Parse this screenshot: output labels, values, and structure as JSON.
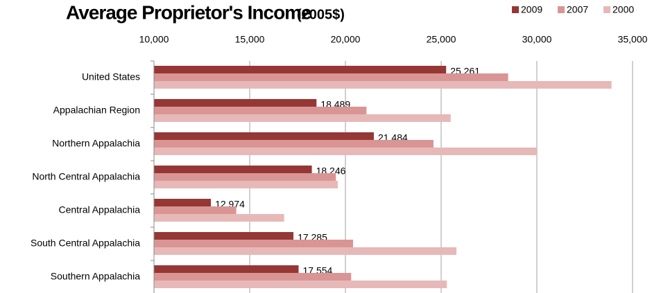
{
  "chart_data": {
    "type": "bar",
    "orientation": "horizontal",
    "title": "Average Proprietor's Income",
    "subtitle": "(2005$)",
    "categories": [
      "United States",
      "Appalachian Region",
      "Northern Appalachia",
      "North Central Appalachia",
      "Central Appalachia",
      "South Central Appalachia",
      "Southern Appalachia"
    ],
    "series": [
      {
        "name": "2009",
        "color": "#953735",
        "values": [
          25261,
          18489,
          21484,
          18246,
          12974,
          17285,
          17554
        ],
        "value_labels": [
          "25,261",
          "18,489",
          "21,484",
          "18,246",
          "12,974",
          "17,285",
          "17,554"
        ]
      },
      {
        "name": "2007",
        "color": "#d99594",
        "values": [
          28500,
          21100,
          24600,
          19500,
          14300,
          20400,
          20300
        ]
      },
      {
        "name": "2000",
        "color": "#e6b9b8",
        "values": [
          33900,
          25500,
          30000,
          19600,
          16800,
          25800,
          25300
        ]
      }
    ],
    "xlim": [
      10000,
      35000
    ],
    "xticks": [
      {
        "value": 10000,
        "label": "10,000"
      },
      {
        "value": 15000,
        "label": "15,000"
      },
      {
        "value": 20000,
        "label": "20,000"
      },
      {
        "value": 25000,
        "label": "25,000"
      },
      {
        "value": 30000,
        "label": "30,000"
      },
      {
        "value": 35000,
        "label": "35,000"
      }
    ],
    "grid": true,
    "legend": "top-right"
  }
}
